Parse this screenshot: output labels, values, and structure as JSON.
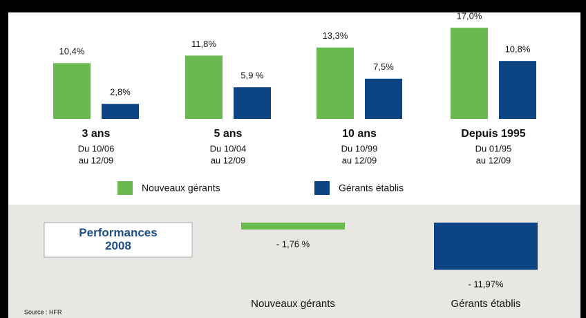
{
  "chart_data": [
    {
      "type": "bar",
      "categories": [
        "3 ans",
        "5 ans",
        "10 ans",
        "Depuis 1995"
      ],
      "category_periods": [
        [
          "Du 10/06",
          "au 12/09"
        ],
        [
          "Du 10/04",
          "au 12/09"
        ],
        [
          "Du 10/99",
          "au 12/09"
        ],
        [
          "Du 01/95",
          "au 12/09"
        ]
      ],
      "series": [
        {
          "name": "Nouveaux gérants",
          "color": "#6ab94f",
          "values": [
            10.4,
            11.8,
            13.3,
            17.0
          ],
          "value_labels": [
            "10,4%",
            "11,8%",
            "13,3%",
            "17,0%"
          ]
        },
        {
          "name": "Gérants établis",
          "color": "#0d4584",
          "values": [
            2.8,
            5.9,
            7.5,
            10.8
          ],
          "value_labels": [
            "2,8%",
            "5,9 %",
            "7,5%",
            "10,8%"
          ]
        }
      ]
    },
    {
      "type": "bar",
      "title": "Performances 2008",
      "categories": [
        "Nouveaux gérants",
        "Gérants établis"
      ],
      "values": [
        -1.76,
        -11.97
      ],
      "value_labels": [
        "- 1,76 %",
        "- 11,97%"
      ],
      "colors": [
        "#6ab94f",
        "#0d4584"
      ]
    }
  ],
  "source": "Source : HFR"
}
